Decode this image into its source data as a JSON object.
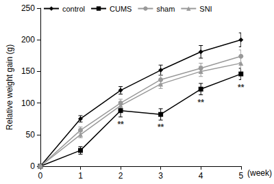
{
  "chart_data": {
    "type": "line",
    "x_label": "(week)",
    "y_label": "Relative weight gain (g)",
    "x": [
      0,
      1,
      2,
      3,
      4,
      5
    ],
    "xlim": [
      0,
      5
    ],
    "xticks": [
      0,
      1,
      2,
      3,
      4,
      5
    ],
    "ylim": [
      0,
      250
    ],
    "yticks": [
      0,
      50,
      100,
      150,
      200,
      250
    ],
    "grid": false,
    "legend": "top",
    "series": [
      {
        "name": "control",
        "color": "#000000",
        "marker": "diamond",
        "values": [
          0,
          75,
          120,
          152,
          181,
          200
        ],
        "errors": [
          0,
          5,
          6,
          8,
          10,
          11
        ]
      },
      {
        "name": "CUMS",
        "color": "#000000",
        "marker": "square",
        "values": [
          0,
          25,
          88,
          82,
          122,
          146
        ],
        "errors": [
          0,
          6,
          10,
          9,
          9,
          9
        ]
      },
      {
        "name": "sham",
        "color": "#999999",
        "marker": "circle",
        "values": [
          0,
          57,
          100,
          137,
          155,
          174
        ],
        "errors": [
          0,
          5,
          6,
          7,
          8,
          10
        ]
      },
      {
        "name": "SNI",
        "color": "#999999",
        "marker": "triangle",
        "values": [
          0,
          50,
          96,
          130,
          150,
          163
        ],
        "errors": [
          0,
          5,
          6,
          7,
          8,
          9
        ]
      }
    ],
    "annotations": [
      {
        "text": "**",
        "x": 2,
        "y": 66
      },
      {
        "text": "**",
        "x": 3,
        "y": 62
      },
      {
        "text": "**",
        "x": 4,
        "y": 101
      },
      {
        "text": "**",
        "x": 5,
        "y": 125
      }
    ]
  }
}
